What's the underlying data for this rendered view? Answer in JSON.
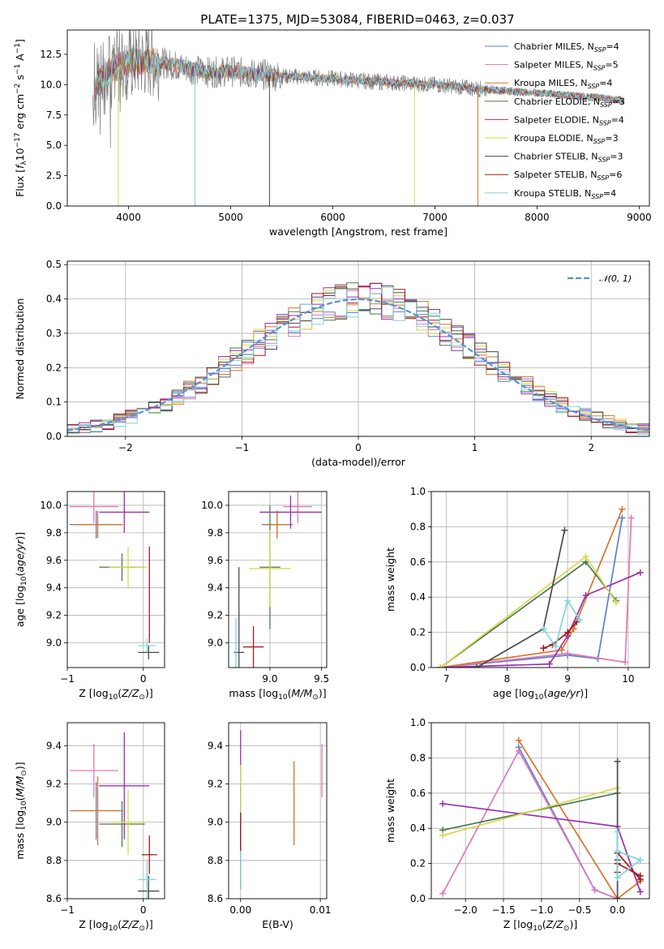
{
  "title": "PLATE=1375, MJD=53084, FIBERID=0463, z=0.037",
  "colors": [
    "#5b7fd6",
    "#e07ab4",
    "#d6762b",
    "#4a7a52",
    "#9a2faf",
    "#d8d84a",
    "#4a4a4a",
    "#a31a1a",
    "#7fd6dc"
  ],
  "legend": [
    {
      "model": "Chabrier MILES",
      "n": "4"
    },
    {
      "model": "Salpeter MILES",
      "n": "5"
    },
    {
      "model": "Kroupa MILES",
      "n": "4"
    },
    {
      "model": "Chabrier ELODIE",
      "n": "3"
    },
    {
      "model": "Salpeter ELODIE",
      "n": "4"
    },
    {
      "model": "Kroupa ELODIE",
      "n": "3"
    },
    {
      "model": "Chabrier STELIB",
      "n": "3"
    },
    {
      "model": "Salpeter STELIB",
      "n": "6"
    },
    {
      "model": "Kroupa STELIB",
      "n": "4"
    }
  ],
  "legend_prefix": "N",
  "legend_sub": "SSP",
  "chart_data": [
    {
      "id": "spectrum",
      "type": "line",
      "xlabel": "wavelength [Angstrom, rest frame]",
      "ylabel": "Flux [f_λ10^-17 erg cm^-2 s^-1 A^-1]",
      "xlim": [
        3400,
        9100
      ],
      "ylim": [
        0,
        14.5
      ],
      "xticks": [
        4000,
        5000,
        6000,
        7000,
        8000,
        9000
      ],
      "yticks": [
        0.0,
        2.5,
        5.0,
        7.5,
        10.0,
        12.5
      ],
      "ytick_labels": [
        "0.0",
        "2.5",
        "5.0",
        "7.5",
        "10.0",
        "12.5"
      ],
      "legend_position": "upper right",
      "continuum": [
        [
          3650,
          9.2
        ],
        [
          3700,
          10.0
        ],
        [
          3800,
          11.0
        ],
        [
          3900,
          11.5
        ],
        [
          4000,
          11.8
        ],
        [
          4200,
          12.0
        ],
        [
          4400,
          11.7
        ],
        [
          4600,
          11.3
        ],
        [
          4800,
          11.0
        ],
        [
          5000,
          11.1
        ],
        [
          5200,
          10.9
        ],
        [
          5500,
          10.7
        ],
        [
          6000,
          10.5
        ],
        [
          6500,
          10.2
        ],
        [
          7000,
          10.0
        ],
        [
          7500,
          9.6
        ],
        [
          8000,
          9.3
        ],
        [
          8500,
          9.0
        ],
        [
          8850,
          8.7
        ]
      ],
      "data_color": "#808080",
      "model_dropouts": [
        {
          "x": 3900,
          "series": 5
        },
        {
          "x": 4650,
          "series": 8
        },
        {
          "x": 5380,
          "series": 6
        },
        {
          "x": 6800,
          "series": 5
        },
        {
          "x": 7420,
          "series": 2
        }
      ]
    },
    {
      "id": "residuals",
      "type": "step",
      "xlabel": "(data-model)/error",
      "ylabel": "Normed distribution",
      "xlim": [
        -2.5,
        2.5
      ],
      "ylim": [
        0,
        0.51
      ],
      "xticks": [
        -2,
        -1,
        0,
        1,
        2
      ],
      "xtick_labels": [
        "−2",
        "−1",
        "0",
        "1",
        "2"
      ],
      "yticks": [
        0.0,
        0.1,
        0.2,
        0.3,
        0.4,
        0.5
      ],
      "ytick_labels": [
        "0.0",
        "0.1",
        "0.2",
        "0.3",
        "0.4",
        "0.5"
      ],
      "bin_width": 0.1,
      "gaussian": {
        "name": "N(0,1)",
        "color": "#5b8fd8"
      },
      "legend_position": "upper right"
    },
    {
      "id": "age_vs_Z",
      "type": "errorbar",
      "xlabel": "Z [log10(Z/Z⊙)]",
      "ylabel": "age [log10(age/yr)]",
      "xlim": [
        -1.0,
        0.28
      ],
      "ylim": [
        8.82,
        10.1
      ],
      "xticks": [
        -1,
        0
      ],
      "xtick_labels": [
        "−1",
        "0"
      ],
      "yticks": [
        9.0,
        9.2,
        9.4,
        9.6,
        9.8,
        10.0
      ],
      "ytick_labels": [
        "9.0",
        "9.2",
        "9.4",
        "9.6",
        "9.8",
        "10.0"
      ],
      "points": [
        {
          "s": 0,
          "x": -0.62,
          "y": 9.86,
          "xe": 0.35,
          "ye": 0.1
        },
        {
          "s": 1,
          "x": -0.65,
          "y": 9.99,
          "xe": 0.32,
          "ye": 0.12
        },
        {
          "s": 2,
          "x": -0.6,
          "y": 9.86,
          "xe": 0.33,
          "ye": 0.1
        },
        {
          "s": 3,
          "x": -0.28,
          "y": 9.55,
          "xe": 0.3,
          "ye": 0.1
        },
        {
          "s": 4,
          "x": -0.25,
          "y": 9.95,
          "xe": 0.33,
          "ye": 0.15
        },
        {
          "s": 5,
          "x": -0.2,
          "y": 9.55,
          "xe": 0.25,
          "ye": 0.15
        },
        {
          "s": 6,
          "x": 0.07,
          "y": 8.93,
          "xe": 0.14,
          "ye": 0.05
        },
        {
          "s": 7,
          "x": 0.08,
          "y": 9.35,
          "xe": 0.0,
          "ye": 0.35
        },
        {
          "s": 8,
          "x": 0.05,
          "y": 8.98,
          "xe": 0.12,
          "ye": 0.05
        }
      ]
    },
    {
      "id": "age_vs_mass",
      "type": "errorbar",
      "xlabel": "mass [log10(M/M⊙)]",
      "ylabel": "",
      "xlim": [
        8.6,
        9.55
      ],
      "ylim": [
        8.82,
        10.1
      ],
      "xticks": [
        9.0,
        9.5
      ],
      "xtick_labels": [
        "9.0",
        "9.5"
      ],
      "yticks": [
        9.0,
        9.2,
        9.4,
        9.6,
        9.8,
        10.0
      ],
      "ytick_labels": [
        "9.0",
        "9.2",
        "9.4",
        "9.6",
        "9.8",
        "10.0"
      ],
      "points": [
        {
          "s": 0,
          "x": 9.07,
          "y": 9.86,
          "xe": 0.15,
          "ye": 0.1
        },
        {
          "s": 1,
          "x": 9.27,
          "y": 9.99,
          "xe": 0.14,
          "ye": 0.12
        },
        {
          "s": 2,
          "x": 9.07,
          "y": 9.86,
          "xe": 0.12,
          "ye": 0.1
        },
        {
          "s": 3,
          "x": 9.0,
          "y": 9.55,
          "xe": 0.1,
          "ye": 0.45
        },
        {
          "s": 4,
          "x": 9.2,
          "y": 9.95,
          "xe": 0.3,
          "ye": 0.12
        },
        {
          "s": 5,
          "x": 9.0,
          "y": 9.54,
          "xe": 0.2,
          "ye": 0.28
        },
        {
          "s": 6,
          "x": 8.7,
          "y": 8.93,
          "xe": 0.05,
          "ye": 0.62
        },
        {
          "s": 7,
          "x": 8.84,
          "y": 8.97,
          "xe": 0.1,
          "ye": 0.15
        },
        {
          "s": 8,
          "x": 8.67,
          "y": 8.98,
          "xe": 0.0,
          "ye": 0.2
        }
      ]
    },
    {
      "id": "massweight_vs_age",
      "type": "line",
      "xlabel": "age [log10(age/yr)]",
      "ylabel": "mass weight",
      "xlim": [
        6.75,
        10.35
      ],
      "ylim": [
        0,
        1.0
      ],
      "xticks": [
        7,
        8,
        9,
        10
      ],
      "xtick_labels": [
        "7",
        "8",
        "9",
        "10"
      ],
      "yticks": [
        0.0,
        0.2,
        0.4,
        0.6,
        0.8,
        1.0
      ],
      "ytick_labels": [
        "0.0",
        "0.2",
        "0.4",
        "0.6",
        "0.8",
        "1.0"
      ],
      "series": [
        {
          "s": 0,
          "points": [
            [
              6.9,
              0.0
            ],
            [
              9.0,
              0.07
            ],
            [
              9.5,
              0.05
            ],
            [
              9.9,
              0.85
            ]
          ]
        },
        {
          "s": 1,
          "points": [
            [
              6.9,
              0.0
            ],
            [
              9.0,
              0.08
            ],
            [
              9.95,
              0.03
            ],
            [
              10.05,
              0.85
            ]
          ]
        },
        {
          "s": 2,
          "points": [
            [
              6.9,
              0.0
            ],
            [
              8.9,
              0.1
            ],
            [
              9.1,
              0.22
            ],
            [
              9.9,
              0.9
            ]
          ]
        },
        {
          "s": 3,
          "points": [
            [
              6.9,
              0.0
            ],
            [
              9.3,
              0.6
            ],
            [
              9.8,
              0.38
            ]
          ]
        },
        {
          "s": 4,
          "points": [
            [
              6.9,
              0.0
            ],
            [
              8.7,
              0.02
            ],
            [
              9.0,
              0.18
            ],
            [
              9.3,
              0.41
            ],
            [
              10.2,
              0.54
            ]
          ]
        },
        {
          "s": 5,
          "points": [
            [
              6.9,
              0.0
            ],
            [
              9.3,
              0.63
            ],
            [
              9.8,
              0.37
            ]
          ]
        },
        {
          "s": 6,
          "points": [
            [
              7.5,
              0.0
            ],
            [
              8.6,
              0.22
            ],
            [
              8.95,
              0.78
            ]
          ]
        },
        {
          "s": 7,
          "points": [
            [
              8.6,
              0.11
            ],
            [
              8.75,
              0.13
            ],
            [
              9.0,
              0.2
            ],
            [
              9.15,
              0.26
            ]
          ]
        },
        {
          "s": 8,
          "points": [
            [
              8.6,
              0.22
            ],
            [
              8.8,
              0.12
            ],
            [
              9.0,
              0.38
            ],
            [
              9.2,
              0.27
            ]
          ]
        }
      ]
    },
    {
      "id": "mass_vs_Z",
      "type": "errorbar",
      "xlabel": "Z [log10(Z/Z⊙)]",
      "ylabel": "mass [log10(M/M⊙)]",
      "xlim": [
        -1.0,
        0.28
      ],
      "ylim": [
        8.6,
        9.52
      ],
      "xticks": [
        -1,
        0
      ],
      "xtick_labels": [
        "−1",
        "0"
      ],
      "yticks": [
        8.6,
        8.8,
        9.0,
        9.2,
        9.4
      ],
      "ytick_labels": [
        "8.6",
        "8.8",
        "9.0",
        "9.2",
        "9.4"
      ],
      "points": [
        {
          "s": 0,
          "x": -0.62,
          "y": 9.06,
          "xe": 0.35,
          "ye": 0.15
        },
        {
          "s": 1,
          "x": -0.65,
          "y": 9.27,
          "xe": 0.32,
          "ye": 0.14
        },
        {
          "s": 2,
          "x": -0.6,
          "y": 9.06,
          "xe": 0.33,
          "ye": 0.18
        },
        {
          "s": 3,
          "x": -0.28,
          "y": 8.99,
          "xe": 0.3,
          "ye": 0.12
        },
        {
          "s": 4,
          "x": -0.25,
          "y": 9.19,
          "xe": 0.33,
          "ye": 0.28
        },
        {
          "s": 5,
          "x": -0.2,
          "y": 9.0,
          "xe": 0.25,
          "ye": 0.17
        },
        {
          "s": 6,
          "x": 0.07,
          "y": 8.64,
          "xe": 0.14,
          "ye": 0.08
        },
        {
          "s": 7,
          "x": 0.08,
          "y": 8.83,
          "xe": 0.1,
          "ye": 0.1
        },
        {
          "s": 8,
          "x": 0.05,
          "y": 8.7,
          "xe": 0.12,
          "ye": 0.1
        }
      ]
    },
    {
      "id": "mass_vs_EBV",
      "type": "errorbar",
      "xlabel": "E(B-V)",
      "ylabel": "",
      "xlim": [
        -0.0015,
        0.0108
      ],
      "ylim": [
        8.6,
        9.52
      ],
      "xticks": [
        0.0,
        0.01
      ],
      "xtick_labels": [
        "0.00",
        "0.01"
      ],
      "yticks": [
        8.6,
        8.8,
        9.0,
        9.2,
        9.4
      ],
      "ytick_labels": [
        "8.6",
        "8.8",
        "9.0",
        "9.2",
        "9.4"
      ],
      "points": [
        {
          "s": 0,
          "x": 0.0,
          "y": 9.06,
          "xe": 0.0,
          "ye": 0.15
        },
        {
          "s": 1,
          "x": 0.0102,
          "y": 9.27,
          "xe": 0.0,
          "ye": 0.14
        },
        {
          "s": 2,
          "x": 0.0067,
          "y": 9.1,
          "xe": 0.0,
          "ye": 0.22
        },
        {
          "s": 3,
          "x": 0.0,
          "y": 8.99,
          "xe": 0.0,
          "ye": 0.12
        },
        {
          "s": 4,
          "x": 0.0,
          "y": 9.3,
          "xe": 0.0,
          "ye": 0.18
        },
        {
          "s": 5,
          "x": 0.0,
          "y": 9.0,
          "xe": 0.0,
          "ye": 0.3
        },
        {
          "s": 6,
          "x": 0.0,
          "y": 8.85,
          "xe": 0.0,
          "ye": 0.2
        },
        {
          "s": 7,
          "x": 0.0,
          "y": 8.95,
          "xe": 0.0,
          "ye": 0.1
        },
        {
          "s": 8,
          "x": 0.0,
          "y": 8.75,
          "xe": 0.0,
          "ye": 0.1
        }
      ]
    },
    {
      "id": "massweight_vs_Z",
      "type": "line",
      "xlabel": "Z [log10(Z/Z⊙)]",
      "ylabel": "mass weight",
      "xlim": [
        -2.45,
        0.42
      ],
      "ylim": [
        0,
        1.0
      ],
      "xticks": [
        -2.0,
        -1.5,
        -1.0,
        -0.5,
        0.0
      ],
      "xtick_labels": [
        "−2.0",
        "−1.5",
        "−1.0",
        "−0.5",
        "0.0"
      ],
      "yticks": [
        0.0,
        0.2,
        0.4,
        0.6,
        0.8,
        1.0
      ],
      "ytick_labels": [
        "0.0",
        "0.2",
        "0.4",
        "0.6",
        "0.8",
        "1.0"
      ],
      "series": [
        {
          "s": 0,
          "points": [
            [
              -1.3,
              0.86
            ],
            [
              -0.3,
              0.05
            ],
            [
              0.0,
              0.0
            ]
          ]
        },
        {
          "s": 1,
          "points": [
            [
              -2.3,
              0.03
            ],
            [
              -1.3,
              0.84
            ],
            [
              -0.3,
              0.05
            ],
            [
              0.0,
              0.0
            ]
          ]
        },
        {
          "s": 2,
          "points": [
            [
              -1.3,
              0.9
            ],
            [
              0.0,
              0.0
            ],
            [
              0.3,
              0.1
            ]
          ]
        },
        {
          "s": 3,
          "points": [
            [
              -2.3,
              0.39
            ],
            [
              0.0,
              0.6
            ]
          ]
        },
        {
          "s": 4,
          "points": [
            [
              -2.3,
              0.54
            ],
            [
              0.0,
              0.41
            ],
            [
              0.3,
              0.04
            ]
          ]
        },
        {
          "s": 5,
          "points": [
            [
              -2.3,
              0.36
            ],
            [
              0.0,
              0.63
            ]
          ]
        },
        {
          "s": 6,
          "points": [
            [
              0.0,
              0.78
            ],
            [
              0.0,
              0.22
            ],
            [
              0.0,
              0.0
            ]
          ]
        },
        {
          "s": 7,
          "points": [
            [
              0.0,
              0.26
            ],
            [
              0.3,
              0.11
            ],
            [
              0.3,
              0.13
            ],
            [
              0.0,
              0.2
            ],
            [
              0.0,
              0.15
            ]
          ]
        },
        {
          "s": 8,
          "points": [
            [
              0.0,
              0.38
            ],
            [
              0.0,
              0.12
            ],
            [
              0.3,
              0.22
            ],
            [
              0.0,
              0.27
            ]
          ]
        }
      ]
    }
  ]
}
